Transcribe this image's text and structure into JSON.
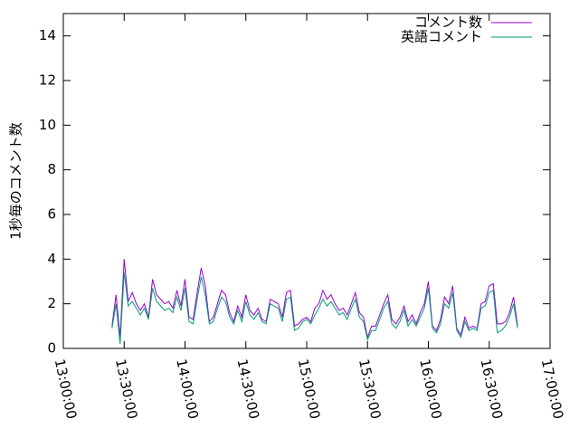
{
  "chart_data": {
    "type": "line",
    "ylabel": "1秒毎のコメント数",
    "xlim": [
      "13:00:00",
      "17:00:00"
    ],
    "xticks": [
      "13:00:00",
      "13:30:00",
      "14:00:00",
      "14:30:00",
      "15:00:00",
      "15:30:00",
      "16:00:00",
      "16:30:00",
      "17:00:00"
    ],
    "ylim": [
      0,
      15
    ],
    "yticks": [
      0,
      2,
      4,
      6,
      8,
      10,
      12,
      14
    ],
    "legend": "top-right",
    "x": [
      "13:24:00",
      "13:26:00",
      "13:28:00",
      "13:30:00",
      "13:32:00",
      "13:34:00",
      "13:36:00",
      "13:38:00",
      "13:40:00",
      "13:42:00",
      "13:44:00",
      "13:46:00",
      "13:48:00",
      "13:50:00",
      "13:52:00",
      "13:54:00",
      "13:56:00",
      "13:58:00",
      "14:00:00",
      "14:02:00",
      "14:04:00",
      "14:06:00",
      "14:08:00",
      "14:10:00",
      "14:12:00",
      "14:14:00",
      "14:16:00",
      "14:18:00",
      "14:20:00",
      "14:22:00",
      "14:24:00",
      "14:26:00",
      "14:28:00",
      "14:30:00",
      "14:32:00",
      "14:34:00",
      "14:36:00",
      "14:38:00",
      "14:40:00",
      "14:42:00",
      "14:44:00",
      "14:46:00",
      "14:48:00",
      "14:50:00",
      "14:52:00",
      "14:54:00",
      "14:56:00",
      "14:58:00",
      "15:00:00",
      "15:02:00",
      "15:04:00",
      "15:06:00",
      "15:08:00",
      "15:10:00",
      "15:12:00",
      "15:14:00",
      "15:16:00",
      "15:18:00",
      "15:20:00",
      "15:22:00",
      "15:24:00",
      "15:26:00",
      "15:28:00",
      "15:30:00",
      "15:32:00",
      "15:34:00",
      "15:36:00",
      "15:38:00",
      "15:40:00",
      "15:42:00",
      "15:44:00",
      "15:46:00",
      "15:48:00",
      "15:50:00",
      "15:52:00",
      "15:54:00",
      "15:56:00",
      "15:58:00",
      "16:00:00",
      "16:02:00",
      "16:04:00",
      "16:06:00",
      "16:08:00",
      "16:10:00",
      "16:12:00",
      "16:14:00",
      "16:16:00",
      "16:18:00",
      "16:20:00",
      "16:22:00",
      "16:24:00",
      "16:26:00",
      "16:28:00",
      "16:30:00",
      "16:32:00",
      "16:34:00",
      "16:36:00",
      "16:38:00",
      "16:40:00",
      "16:42:00",
      "16:44:00"
    ],
    "series": [
      {
        "name": "コメント数",
        "color": "#9400d3",
        "values": [
          1.0,
          2.4,
          0.5,
          4.0,
          2.1,
          2.5,
          2.0,
          1.7,
          2.0,
          1.4,
          3.1,
          2.4,
          2.2,
          2.0,
          2.1,
          1.8,
          2.6,
          1.9,
          3.1,
          1.4,
          1.3,
          2.5,
          3.6,
          2.8,
          1.2,
          1.4,
          2.0,
          2.6,
          2.4,
          1.6,
          1.2,
          1.9,
          1.4,
          2.4,
          1.7,
          1.5,
          1.8,
          1.3,
          1.2,
          2.2,
          2.1,
          2.0,
          1.4,
          2.5,
          2.6,
          1.0,
          1.1,
          1.3,
          1.4,
          1.2,
          1.8,
          2.0,
          2.6,
          2.2,
          2.4,
          2.0,
          1.7,
          1.8,
          1.5,
          2.0,
          2.5,
          1.6,
          1.4,
          0.5,
          1.0,
          1.0,
          1.5,
          2.0,
          2.4,
          1.3,
          1.1,
          1.4,
          1.9,
          1.2,
          1.5,
          1.1,
          1.6,
          2.0,
          3.0,
          1.0,
          0.8,
          1.3,
          2.3,
          2.0,
          2.8,
          0.9,
          0.6,
          1.4,
          0.9,
          1.0,
          0.9,
          2.0,
          2.1,
          2.8,
          2.9,
          1.1,
          1.1,
          1.2,
          1.6,
          2.3,
          1.0
        ]
      },
      {
        "name": "英語コメント",
        "color": "#009e73",
        "values": [
          0.9,
          2.0,
          0.2,
          3.4,
          1.9,
          2.1,
          1.8,
          1.5,
          1.8,
          1.3,
          2.7,
          2.1,
          1.9,
          1.7,
          1.8,
          1.6,
          2.3,
          1.7,
          2.7,
          1.2,
          1.1,
          2.2,
          3.2,
          2.4,
          1.1,
          1.2,
          1.8,
          2.3,
          2.1,
          1.4,
          1.1,
          1.7,
          1.2,
          2.1,
          1.5,
          1.3,
          1.6,
          1.2,
          1.1,
          2.0,
          1.9,
          1.8,
          1.2,
          2.2,
          2.3,
          0.8,
          0.9,
          1.2,
          1.3,
          1.1,
          1.5,
          1.8,
          2.2,
          1.9,
          2.1,
          1.8,
          1.5,
          1.6,
          1.3,
          1.8,
          2.2,
          1.4,
          1.2,
          0.4,
          0.8,
          0.8,
          1.3,
          1.8,
          2.1,
          1.1,
          0.9,
          1.2,
          1.7,
          1.0,
          1.3,
          1.0,
          1.4,
          1.8,
          2.7,
          0.9,
          0.7,
          1.1,
          2.0,
          1.8,
          2.5,
          0.8,
          0.5,
          1.2,
          0.8,
          0.9,
          0.8,
          1.8,
          1.9,
          2.5,
          2.6,
          0.7,
          0.8,
          1.0,
          1.4,
          2.0,
          0.9
        ]
      }
    ]
  }
}
